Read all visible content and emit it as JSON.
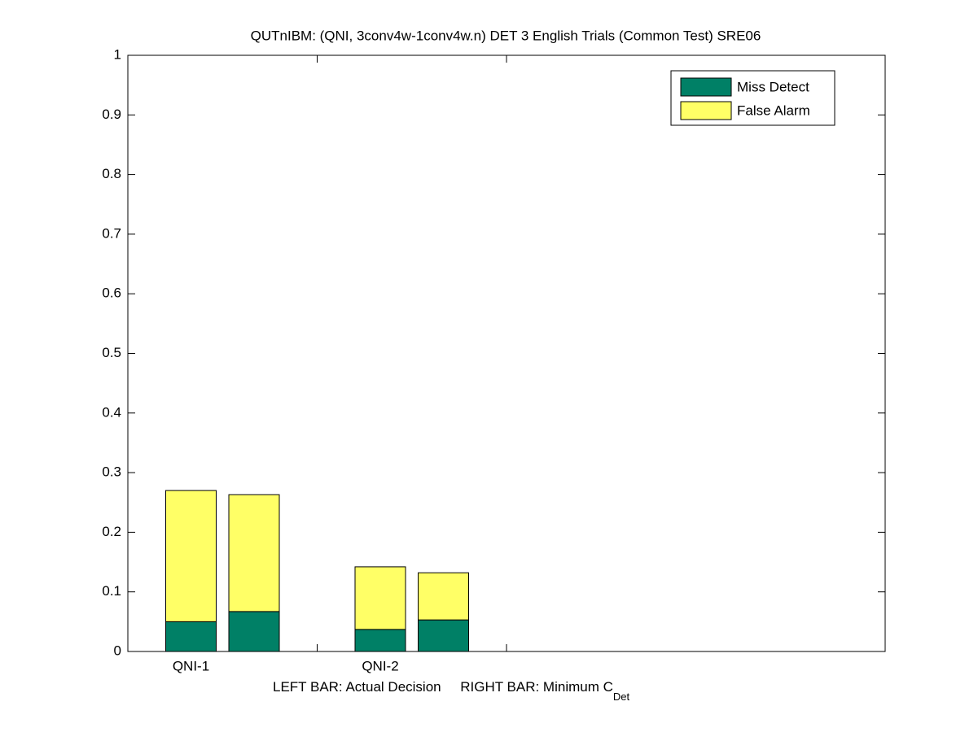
{
  "chart_data": {
    "type": "stacked_bar",
    "title": "QUTnIBM: (QNI, 3conv4w-1conv4w.n) DET 3 English Trials (Common Test) SRE06",
    "xlabel": "LEFT BAR: Actual Decision     RIGHT BAR: Minimum C",
    "xlabel_subscript": "Det",
    "categories": [
      "QNI-1",
      null,
      "QNI-2",
      null
    ],
    "series": [
      {
        "name": "Miss Detect",
        "color": "#008066",
        "values": [
          0.05,
          0.067,
          0.037,
          0.053
        ]
      },
      {
        "name": "False Alarm",
        "color": "#ffff66",
        "values": [
          0.22,
          0.196,
          0.105,
          0.079
        ]
      }
    ],
    "ylim": [
      0,
      1
    ],
    "yticks": [
      0,
      0.1,
      0.2,
      0.3,
      0.4,
      0.5,
      0.6,
      0.7,
      0.8,
      0.9,
      1
    ],
    "legend": "upper right"
  }
}
